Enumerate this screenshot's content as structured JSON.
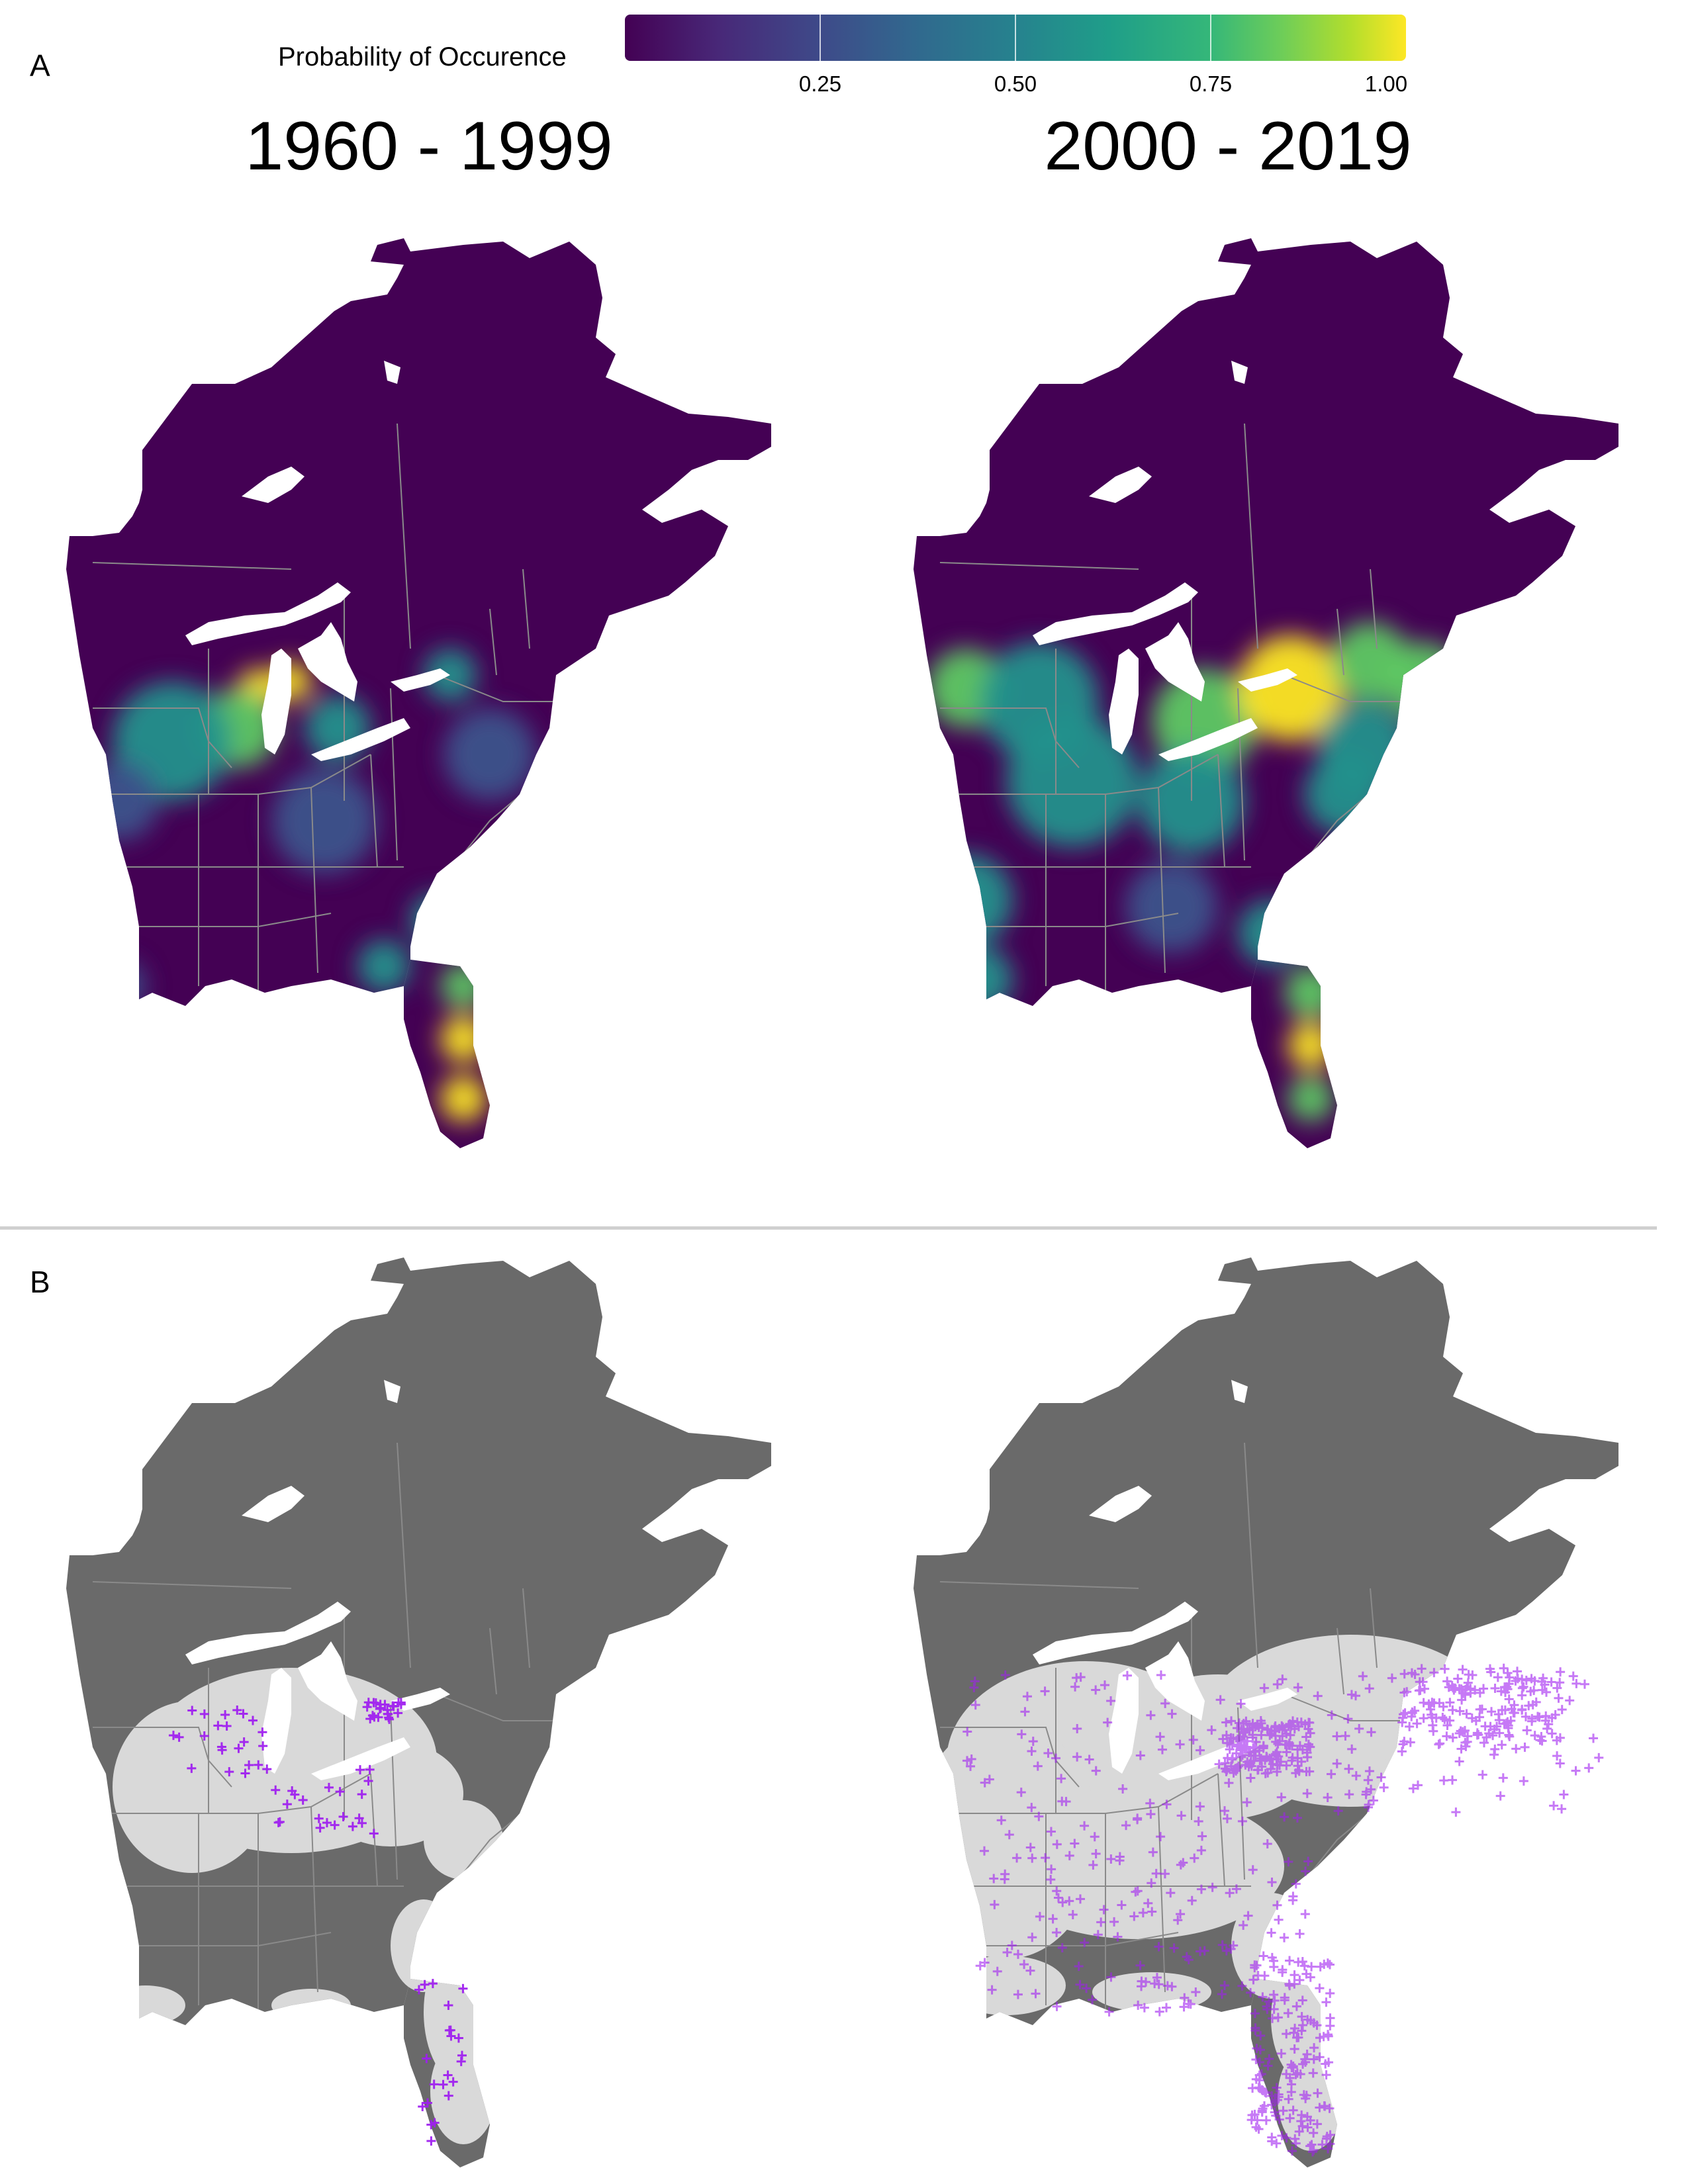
{
  "panels": {
    "a_letter": "A",
    "b_letter": "B"
  },
  "legend": {
    "title": "Probability of Occurence",
    "ticks": [
      "0.25",
      "0.50",
      "0.75",
      "1.00"
    ],
    "tick_values": [
      0.25,
      0.5,
      0.75,
      1.0
    ],
    "palette": "viridis",
    "range": [
      0,
      1
    ]
  },
  "periods": {
    "early": "1960 - 1999",
    "late": "2000 - 2019"
  },
  "colors": {
    "low_probability": "#440154",
    "high_probability": "#fde725",
    "range_fill": "#d9d9d9",
    "outside_range_fill": "#6a6a6a",
    "occurrence_marker": "#a020f0",
    "boundaries": "#8a8a8a",
    "lakes": "#ffffff"
  },
  "occurrence_markers": {
    "symbol": "+",
    "early_period_density": "sparse",
    "late_period_density": "dense"
  }
}
